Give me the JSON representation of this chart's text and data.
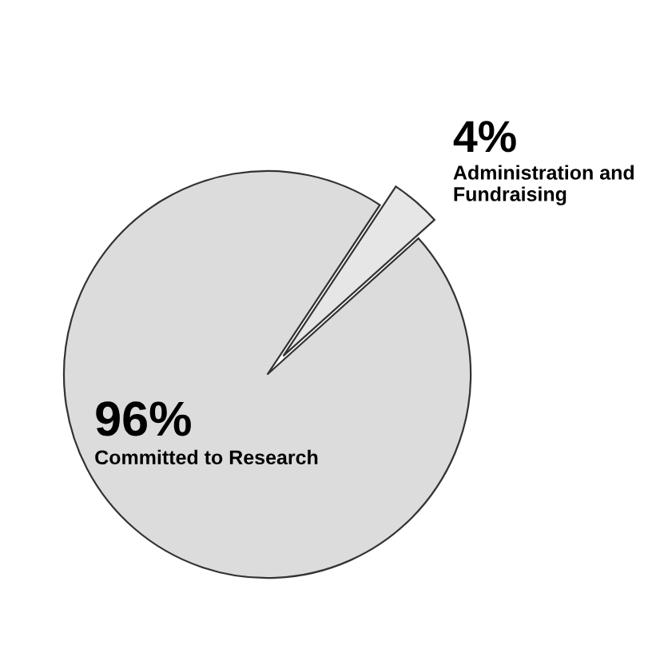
{
  "chart_data": {
    "type": "pie",
    "categories": [
      "Administration and Fundraising",
      "Committed to Research"
    ],
    "values": [
      4,
      96
    ],
    "colors": [
      "#e6e6e6",
      "#dcdcdc"
    ],
    "value_labels": [
      "4%",
      "96%"
    ]
  }
}
